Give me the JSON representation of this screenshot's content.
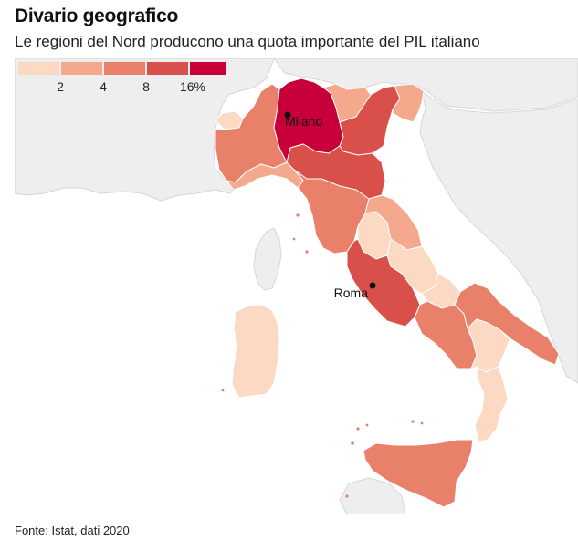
{
  "header": {
    "title": "Divario geografico",
    "subtitle": "Le regioni del Nord producono una quota importante del PIL italiano"
  },
  "legend": {
    "tick_labels": [
      "2",
      "4",
      "8",
      "16%"
    ],
    "colors": [
      "#fcd9c3",
      "#f4a98d",
      "#e8806a",
      "#d9504a",
      "#c8003a"
    ]
  },
  "cities": [
    {
      "name": "Milano"
    },
    {
      "name": "Roma"
    }
  ],
  "colors": {
    "sea": "#ffffff",
    "foreign_land": "#eeeeee",
    "foreign_border": "#d6d6d6",
    "region_border": "#ffffff"
  },
  "regions": [
    {
      "name": "Valle d'Aosta",
      "bin": 0
    },
    {
      "name": "Piemonte",
      "bin": 2
    },
    {
      "name": "Lombardia",
      "bin": 4
    },
    {
      "name": "Trentino-Alto Adige",
      "bin": 1
    },
    {
      "name": "Veneto",
      "bin": 3
    },
    {
      "name": "Friuli-Venezia Giulia",
      "bin": 1
    },
    {
      "name": "Liguria",
      "bin": 1
    },
    {
      "name": "Emilia-Romagna",
      "bin": 3
    },
    {
      "name": "Toscana",
      "bin": 2
    },
    {
      "name": "Umbria",
      "bin": 0
    },
    {
      "name": "Marche",
      "bin": 1
    },
    {
      "name": "Lazio",
      "bin": 3
    },
    {
      "name": "Abruzzo",
      "bin": 0
    },
    {
      "name": "Molise",
      "bin": 0
    },
    {
      "name": "Campania",
      "bin": 2
    },
    {
      "name": "Puglia",
      "bin": 2
    },
    {
      "name": "Basilicata",
      "bin": 0
    },
    {
      "name": "Calabria",
      "bin": 0
    },
    {
      "name": "Sicilia",
      "bin": 2
    },
    {
      "name": "Sardegna",
      "bin": 0
    }
  ],
  "footer": {
    "source": "Fonte: Istat, dati 2020"
  }
}
